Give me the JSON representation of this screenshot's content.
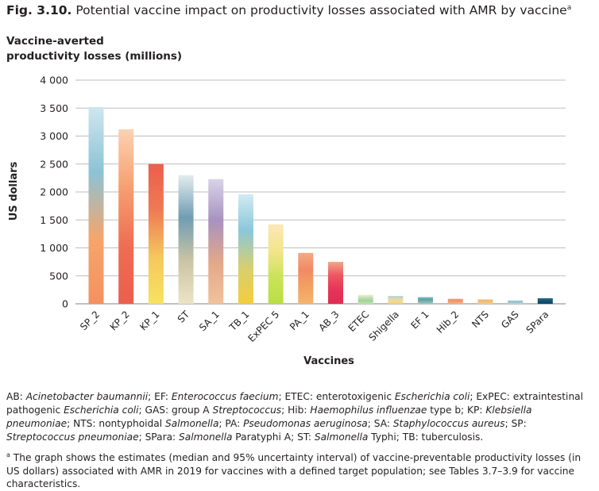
{
  "figure": {
    "number": "Fig. 3.10.",
    "title": "Potential vaccine impact on productivity losses associated with AMR by vaccine",
    "title_footnote_mark": "a"
  },
  "chart_data": {
    "type": "bar",
    "ylabel_top": [
      "Vaccine-averted",
      "productivity losses (millions)"
    ],
    "ylabel": "US dollars",
    "xlabel": "Vaccines",
    "ylim": [
      0,
      4000
    ],
    "yticks": [
      0,
      500,
      1000,
      1500,
      2000,
      2500,
      3000,
      3500,
      4000
    ],
    "ytick_labels": [
      "0",
      "500",
      "1 000",
      "1 500",
      "2 000",
      "2 500",
      "3 000",
      "3 500",
      "4 000"
    ],
    "grid": true,
    "categories": [
      "SP_2",
      "KP_2",
      "KP_1",
      "ST",
      "SA_1",
      "TB_1",
      "ExPEC 5",
      "PA_1",
      "AB_3",
      "ETEC",
      "Shigella",
      "EF 1",
      "Hib_2",
      "NTS",
      "GAS",
      "SPara"
    ],
    "values": [
      3520,
      3120,
      2500,
      2300,
      2230,
      1960,
      1420,
      910,
      750,
      160,
      140,
      120,
      90,
      80,
      60,
      100
    ],
    "bar_gradients": [
      [
        "#cfe6ef",
        "#8cc3d6",
        "#f6a56b",
        "#f49160"
      ],
      [
        "#fbd2b2",
        "#f6a070",
        "#ef6d53",
        "#ec5e4d"
      ],
      [
        "#ec5e4d",
        "#ef7a55",
        "#f5c85e",
        "#f7e25f"
      ],
      [
        "#e3ecef",
        "#6f9db3",
        "#cbc5a3",
        "#ece3c6"
      ],
      [
        "#d8d4e8",
        "#a892bf",
        "#e3a88a",
        "#f0c29a"
      ],
      [
        "#d2ebf3",
        "#8ac8da",
        "#d8cf70",
        "#f3ce3c"
      ],
      [
        "#fbe8b7",
        "#f3e58b",
        "#cbe25a",
        "#b9df45"
      ],
      [
        "#f4a985",
        "#f08a63",
        "#f4a064",
        "#f6b46a"
      ],
      [
        "#f3a58a",
        "#ed5562",
        "#e63458",
        "#e02e52"
      ],
      [
        "#f2ecd0",
        "#bedfb3",
        "#9fd29c",
        "#c7e3a8"
      ],
      [
        "#a9d3dd",
        "#dcd8b0",
        "#f4db8e",
        "#f7cf7b"
      ],
      [
        "#8cc4c9",
        "#5c9fa7",
        "#7db2ad",
        "#a9c8b0"
      ],
      [
        "#f4a47b",
        "#ef9067",
        "#f2a372",
        "#f5b27d"
      ],
      [
        "#f5c98a",
        "#f3b66f",
        "#f2c377",
        "#f5d386"
      ],
      [
        "#b1d6dd",
        "#8cc0cc",
        "#9bc9cd",
        "#c6e0dd"
      ],
      [
        "#2a6f8a",
        "#195a78",
        "#124c6a",
        "#0f4563"
      ]
    ]
  },
  "abbreviations_html": "AB: <i>Acinetobacter baumannii</i>; EF: <i>Enterococcus faecium</i>; ETEC: enterotoxigenic <i>Escherichia coli</i>; ExPEC: extraintestinal pathogenic <i>Escherichia coli</i>; GAS: group A <i>Streptococcus</i>; Hib: <i>Haemophilus influenzae</i> type b; KP: <i>Klebsiella pneumoniae</i>; NTS: nontyphoidal <i>Salmonella</i>; PA: <i>Pseudomonas aeruginosa</i>; SA: <i>Staphylococcus aureus</i>; SP: <i>Streptococcus pneumoniae</i>; SPara: <i>Salmonella</i> Paratyphi A; ST: <i>Salmonella</i> Typhi; TB: tuberculosis.",
  "footnote": {
    "mark": "a",
    "text": " The graph shows the estimates (median and 95% uncertainty interval) of vaccine-preventable productivity losses (in US dollars) associated with AMR in 2019 for vaccines with a defined target population; see Tables 3.7–3.9 for vaccine characteristics."
  }
}
